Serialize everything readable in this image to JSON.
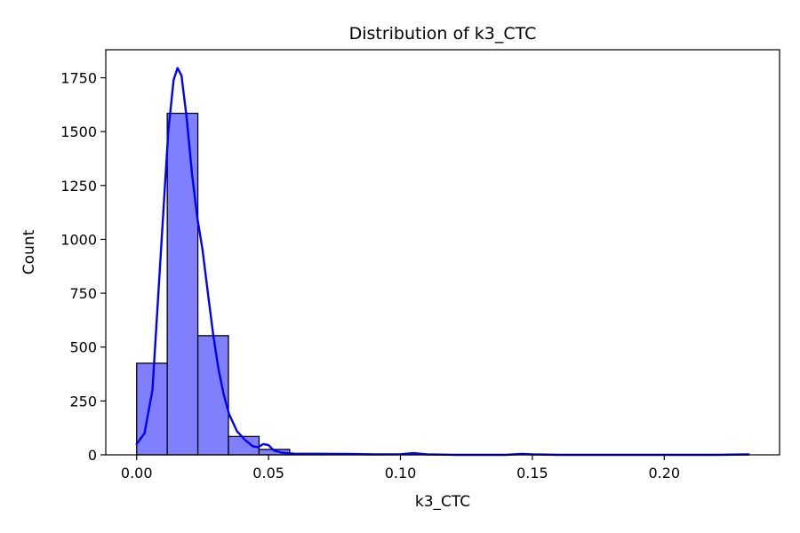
{
  "chart_data": {
    "type": "bar",
    "title": "Distribution of k3_CTC",
    "xlabel": "k3_CTC",
    "ylabel": "Count",
    "xlim": [
      -0.0117,
      0.2437
    ],
    "ylim": [
      0,
      1880
    ],
    "x_ticks": [
      0.0,
      0.05,
      0.1,
      0.15,
      0.2
    ],
    "x_tick_labels": [
      "0.00",
      "0.05",
      "0.10",
      "0.15",
      "0.20"
    ],
    "y_ticks": [
      0,
      250,
      500,
      750,
      1000,
      1250,
      1500,
      1750
    ],
    "y_tick_labels": [
      "0",
      "250",
      "500",
      "750",
      "1000",
      "1250",
      "1500",
      "1750"
    ],
    "grid": false,
    "bar_color": "#8080ff",
    "bar_edge_color": "#000000",
    "kde_color": "#0000ff",
    "bins": [
      {
        "x0": 0.0,
        "x1": 0.0116,
        "count": 425
      },
      {
        "x0": 0.0116,
        "x1": 0.0232,
        "count": 1585
      },
      {
        "x0": 0.0232,
        "x1": 0.0348,
        "count": 553
      },
      {
        "x0": 0.0348,
        "x1": 0.0464,
        "count": 85
      },
      {
        "x0": 0.0464,
        "x1": 0.058,
        "count": 25
      },
      {
        "x0": 0.058,
        "x1": 0.0696,
        "count": 4
      },
      {
        "x0": 0.0696,
        "x1": 0.0812,
        "count": 2
      },
      {
        "x0": 0.0812,
        "x1": 0.0928,
        "count": 1
      },
      {
        "x0": 0.0928,
        "x1": 0.1044,
        "count": 1
      },
      {
        "x0": 0.1044,
        "x1": 0.116,
        "count": 1
      },
      {
        "x0": 0.116,
        "x1": 0.1276,
        "count": 0
      },
      {
        "x0": 0.1276,
        "x1": 0.1392,
        "count": 0
      },
      {
        "x0": 0.1392,
        "x1": 0.1508,
        "count": 1
      },
      {
        "x0": 0.1508,
        "x1": 0.1624,
        "count": 0
      },
      {
        "x0": 0.1624,
        "x1": 0.174,
        "count": 0
      },
      {
        "x0": 0.174,
        "x1": 0.1856,
        "count": 0
      },
      {
        "x0": 0.1856,
        "x1": 0.1972,
        "count": 0
      },
      {
        "x0": 0.1972,
        "x1": 0.2088,
        "count": 0
      },
      {
        "x0": 0.2088,
        "x1": 0.2204,
        "count": 0
      },
      {
        "x0": 0.2204,
        "x1": 0.232,
        "count": 1
      }
    ],
    "kde": {
      "x": [
        0.0,
        0.003,
        0.006,
        0.009,
        0.012,
        0.014,
        0.0155,
        0.017,
        0.019,
        0.021,
        0.023,
        0.025,
        0.027,
        0.029,
        0.031,
        0.033,
        0.035,
        0.038,
        0.041,
        0.044,
        0.046,
        0.048,
        0.05,
        0.052,
        0.055,
        0.06,
        0.07,
        0.08,
        0.09,
        0.1,
        0.105,
        0.11,
        0.12,
        0.14,
        0.146,
        0.15,
        0.16,
        0.18,
        0.2,
        0.22,
        0.232
      ],
      "y": [
        50,
        100,
        300,
        900,
        1500,
        1740,
        1795,
        1760,
        1560,
        1300,
        1100,
        950,
        750,
        560,
        400,
        280,
        190,
        110,
        70,
        40,
        35,
        50,
        45,
        20,
        10,
        5,
        5,
        4,
        2,
        3,
        8,
        2,
        0,
        0,
        4,
        2,
        0,
        0,
        0,
        0,
        2
      ]
    }
  }
}
